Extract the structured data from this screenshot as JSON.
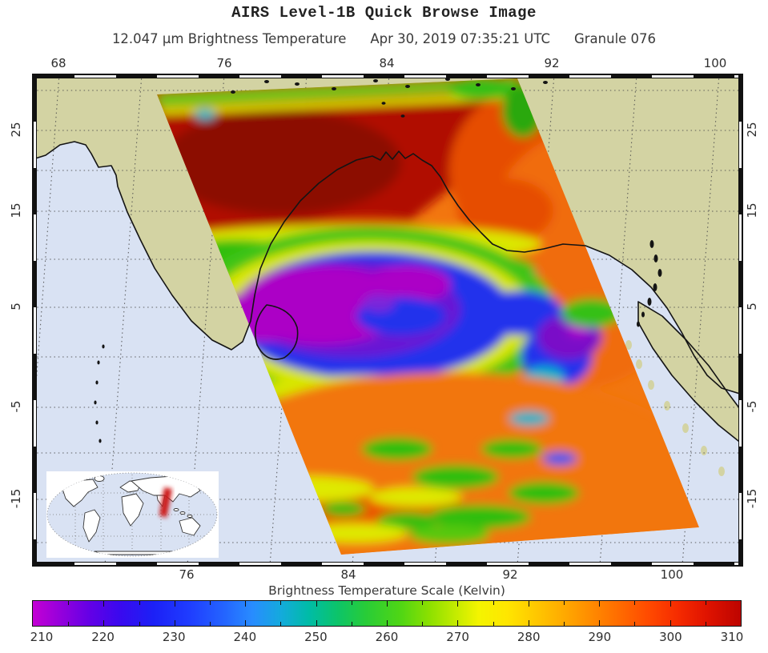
{
  "title": "AIRS Level-1B Quick Browse Image",
  "subtitle": {
    "measurement": "12.047 μm Brightness Temperature",
    "timestamp": "Apr 30, 2019 07:35:21 UTC",
    "granule": "Granule 076"
  },
  "map": {
    "top_axis_labels": [
      "68",
      "76",
      "84",
      "92",
      "100"
    ],
    "bottom_axis_labels": [
      "76",
      "84",
      "92",
      "100"
    ],
    "left_axis_labels": [
      "25",
      "15",
      "5",
      "-5",
      "-15"
    ],
    "right_axis_labels": [
      "25",
      "15",
      "5",
      "-5",
      "-15"
    ]
  },
  "colorbar": {
    "title": "Brightness Temperature Scale (Kelvin)",
    "tick_labels": [
      "210",
      "220",
      "230",
      "240",
      "250",
      "260",
      "270",
      "280",
      "290",
      "300",
      "310"
    ],
    "range_min": 210,
    "range_max": 310,
    "gradient_stops": [
      [
        0,
        "#c400d4"
      ],
      [
        4,
        "#9400dc"
      ],
      [
        8,
        "#6400e6"
      ],
      [
        12,
        "#3c08ee"
      ],
      [
        17,
        "#1c20f6"
      ],
      [
        22,
        "#1f3cff"
      ],
      [
        27,
        "#2464ff"
      ],
      [
        31,
        "#288cff"
      ],
      [
        35,
        "#14aadd"
      ],
      [
        39,
        "#00bca6"
      ],
      [
        43,
        "#0cc46a"
      ],
      [
        47,
        "#28cc38"
      ],
      [
        52,
        "#50d614"
      ],
      [
        56,
        "#8ce000"
      ],
      [
        60,
        "#c8ec00"
      ],
      [
        63,
        "#f4f400"
      ],
      [
        67,
        "#ffe600"
      ],
      [
        71,
        "#ffc800"
      ],
      [
        75,
        "#ffaa00"
      ],
      [
        79,
        "#ff8a00"
      ],
      [
        83,
        "#ff6a00"
      ],
      [
        87,
        "#ff4a00"
      ],
      [
        91,
        "#f62c00"
      ],
      [
        95,
        "#e11400"
      ],
      [
        100,
        "#bd0400"
      ]
    ]
  },
  "colors": {
    "ocean": "#d9e2f3",
    "land": "#d3d3a3",
    "coastline": "#141414",
    "grid": "#4a4a4a",
    "swath_cold": "#ac00c6",
    "swath_hot": "#b01000",
    "inset_swath_marker": "#cc1414"
  }
}
